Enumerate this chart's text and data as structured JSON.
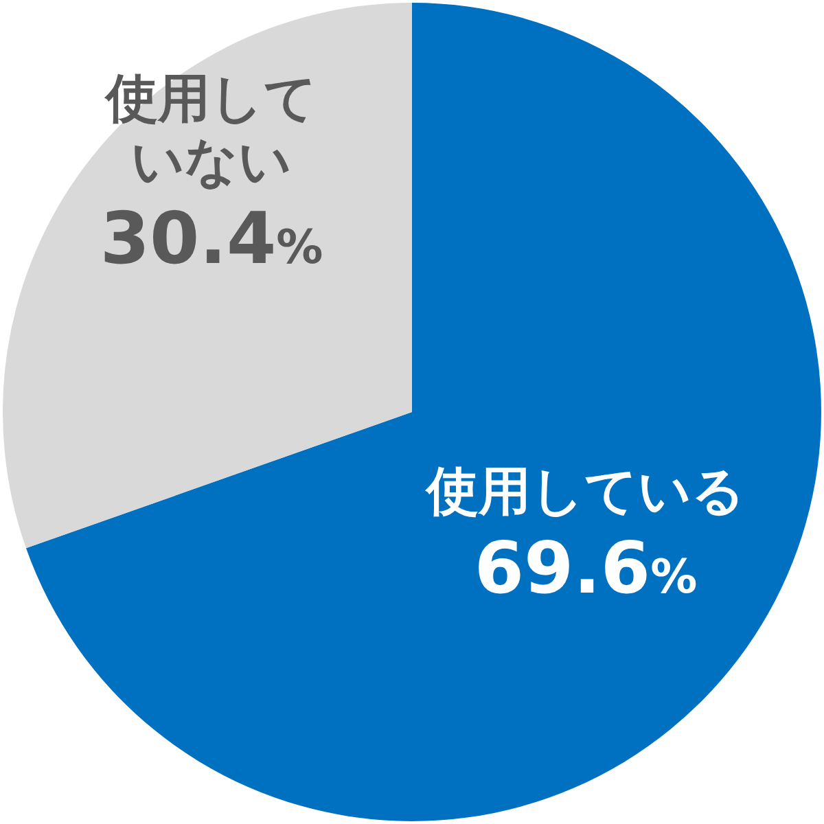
{
  "chart_data": {
    "type": "pie",
    "categories": [
      "使用している",
      "使用していない"
    ],
    "values": [
      69.6,
      30.4
    ],
    "colors": [
      "#0070c0",
      "#d9d9d9"
    ],
    "value_labels": [
      "69.6%",
      "30.4%"
    ],
    "legend": false
  }
}
